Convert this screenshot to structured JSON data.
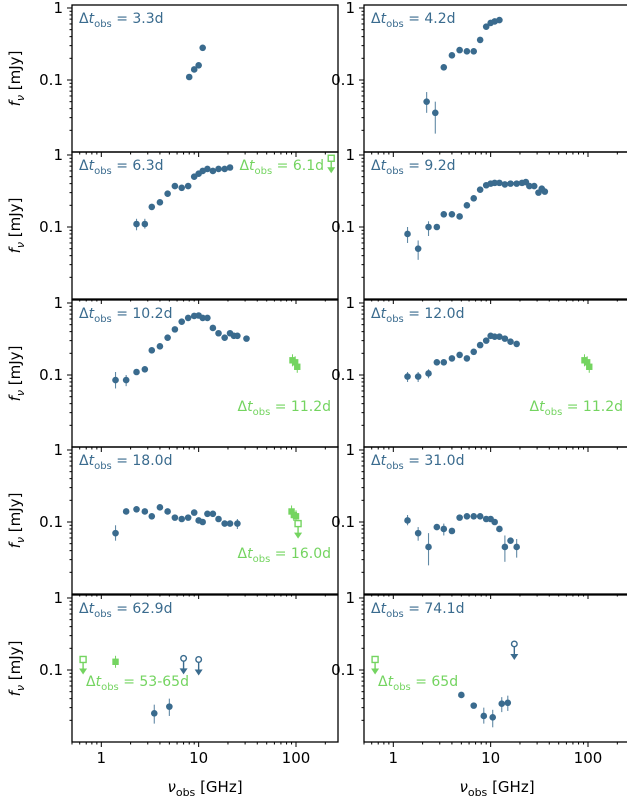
{
  "chart_data": {
    "type": "scatter",
    "grid": false,
    "x_scale": "log",
    "y_scale": "log",
    "xlim": [
      0.5,
      270
    ],
    "ylim": [
      0.01,
      1.1
    ],
    "x_ticks": [
      "1",
      "10",
      "100"
    ],
    "y_ticks": [
      "0.1",
      "1"
    ],
    "xlabel": "ν_obs [GHz]",
    "ylabel": "f_ν [mJy]",
    "colors": {
      "main": "#3a6b8e",
      "secondary": "#74d460"
    },
    "panels": [
      {
        "label": "Δt_obs = 3.3d",
        "points": [
          [
            8.0,
            0.11
          ],
          [
            9.0,
            0.14
          ],
          [
            10.0,
            0.16
          ],
          [
            11.0,
            0.28
          ]
        ],
        "errors": [],
        "secondary_label": "",
        "secondary_points": []
      },
      {
        "label": "Δt_obs = 4.2d",
        "points": [
          [
            2.2,
            0.05
          ],
          [
            2.7,
            0.035
          ],
          [
            3.3,
            0.15
          ],
          [
            4.0,
            0.22
          ],
          [
            4.8,
            0.26
          ],
          [
            5.7,
            0.25
          ],
          [
            6.7,
            0.25
          ],
          [
            7.8,
            0.36
          ],
          [
            9.0,
            0.55
          ],
          [
            10.0,
            0.62
          ],
          [
            11.0,
            0.65
          ],
          [
            12.3,
            0.68
          ]
        ],
        "errors": [
          [
            2.2,
            0.035,
            0.068
          ],
          [
            2.7,
            0.018,
            0.05
          ]
        ],
        "secondary_label": "",
        "secondary_points": []
      },
      {
        "label": "Δt_obs = 6.3d",
        "points": [
          [
            2.3,
            0.11
          ],
          [
            2.8,
            0.11
          ],
          [
            3.3,
            0.19
          ],
          [
            4.0,
            0.22
          ],
          [
            4.8,
            0.29
          ],
          [
            5.7,
            0.37
          ],
          [
            6.7,
            0.35
          ],
          [
            7.8,
            0.37
          ],
          [
            9.0,
            0.5
          ],
          [
            10.0,
            0.55
          ],
          [
            11.0,
            0.6
          ],
          [
            12.3,
            0.64
          ],
          [
            14.0,
            0.6
          ],
          [
            16.0,
            0.64
          ],
          [
            18.5,
            0.64
          ],
          [
            21.0,
            0.67
          ]
        ],
        "errors": [
          [
            2.3,
            0.09,
            0.13
          ],
          [
            2.8,
            0.095,
            0.13
          ]
        ],
        "secondary_label": "Δt_obs = 6.1d",
        "secondary_points": [
          [
            230,
            0.9,
            "upper"
          ]
        ]
      },
      {
        "label": "Δt_obs = 9.2d",
        "points": [
          [
            1.4,
            0.08
          ],
          [
            1.8,
            0.05
          ],
          [
            2.3,
            0.1
          ],
          [
            2.8,
            0.1
          ],
          [
            3.3,
            0.15
          ],
          [
            4.0,
            0.15
          ],
          [
            4.8,
            0.14
          ],
          [
            5.7,
            0.2
          ],
          [
            6.7,
            0.25
          ],
          [
            7.8,
            0.33
          ],
          [
            9.0,
            0.38
          ],
          [
            10.0,
            0.4
          ],
          [
            11.0,
            0.41
          ],
          [
            12.3,
            0.41
          ],
          [
            14.0,
            0.39
          ],
          [
            16.0,
            0.4
          ],
          [
            18.5,
            0.4
          ],
          [
            21.0,
            0.41
          ],
          [
            23.0,
            0.42
          ],
          [
            25.0,
            0.37
          ],
          [
            28.0,
            0.37
          ],
          [
            31.0,
            0.3
          ],
          [
            33.5,
            0.34
          ],
          [
            36.0,
            0.31
          ]
        ],
        "errors": [
          [
            1.4,
            0.06,
            0.1
          ],
          [
            1.8,
            0.035,
            0.065
          ],
          [
            2.3,
            0.075,
            0.12
          ]
        ],
        "secondary_label": "",
        "secondary_points": []
      },
      {
        "label": "Δt_obs = 10.2d",
        "points": [
          [
            1.4,
            0.085
          ],
          [
            1.8,
            0.085
          ],
          [
            2.3,
            0.11
          ],
          [
            2.8,
            0.12
          ],
          [
            3.3,
            0.22
          ],
          [
            4.0,
            0.25
          ],
          [
            4.8,
            0.33
          ],
          [
            5.7,
            0.43
          ],
          [
            6.7,
            0.55
          ],
          [
            7.8,
            0.62
          ],
          [
            9.0,
            0.66
          ],
          [
            10.0,
            0.67
          ],
          [
            11.0,
            0.62
          ],
          [
            12.3,
            0.62
          ],
          [
            14.0,
            0.45
          ],
          [
            16.0,
            0.38
          ],
          [
            18.5,
            0.33
          ],
          [
            21.0,
            0.38
          ],
          [
            23.0,
            0.35
          ],
          [
            25.0,
            0.35
          ],
          [
            31.0,
            0.32
          ]
        ],
        "errors": [
          [
            1.4,
            0.065,
            0.11
          ],
          [
            1.8,
            0.07,
            0.1
          ]
        ],
        "secondary_label": "Δt_obs = 11.2d",
        "secondary_points": [
          [
            92,
            0.16,
            "detection"
          ],
          [
            98,
            0.15,
            "detection"
          ],
          [
            103,
            0.13,
            "detection"
          ]
        ]
      },
      {
        "label": "Δt_obs = 12.0d",
        "points": [
          [
            1.4,
            0.095
          ],
          [
            1.8,
            0.095
          ],
          [
            2.3,
            0.105
          ],
          [
            2.8,
            0.15
          ],
          [
            3.3,
            0.15
          ],
          [
            4.0,
            0.17
          ],
          [
            4.8,
            0.19
          ],
          [
            5.7,
            0.17
          ],
          [
            6.7,
            0.21
          ],
          [
            7.8,
            0.26
          ],
          [
            9.0,
            0.3
          ],
          [
            10.0,
            0.35
          ],
          [
            11.0,
            0.34
          ],
          [
            12.3,
            0.34
          ],
          [
            14.0,
            0.32
          ],
          [
            16.0,
            0.29
          ],
          [
            18.5,
            0.27
          ]
        ],
        "errors": [
          [
            1.4,
            0.08,
            0.11
          ],
          [
            1.8,
            0.08,
            0.11
          ],
          [
            2.3,
            0.09,
            0.12
          ]
        ],
        "secondary_label": "Δt_obs = 11.2d",
        "secondary_points": [
          [
            92,
            0.16,
            "detection"
          ],
          [
            98,
            0.15,
            "detection"
          ],
          [
            103,
            0.13,
            "detection"
          ]
        ]
      },
      {
        "label": "Δt_obs = 18.0d",
        "points": [
          [
            1.4,
            0.07
          ],
          [
            1.8,
            0.14
          ],
          [
            2.3,
            0.15
          ],
          [
            2.8,
            0.14
          ],
          [
            3.3,
            0.12
          ],
          [
            4.0,
            0.16
          ],
          [
            4.8,
            0.14
          ],
          [
            5.7,
            0.115
          ],
          [
            6.7,
            0.11
          ],
          [
            7.8,
            0.115
          ],
          [
            9.0,
            0.135
          ],
          [
            10.0,
            0.105
          ],
          [
            11.0,
            0.1
          ],
          [
            12.3,
            0.13
          ],
          [
            14.0,
            0.13
          ],
          [
            16.0,
            0.11
          ],
          [
            18.5,
            0.095
          ],
          [
            21.0,
            0.095
          ],
          [
            25.0,
            0.095
          ]
        ],
        "errors": [
          [
            1.4,
            0.055,
            0.09
          ],
          [
            25.0,
            0.08,
            0.11
          ]
        ],
        "secondary_label": "Δt_obs = 16.0d",
        "secondary_points": [
          [
            90,
            0.14,
            "detection"
          ],
          [
            95,
            0.125,
            "detection"
          ],
          [
            100,
            0.12,
            "detection"
          ],
          [
            105,
            0.095,
            "upper"
          ]
        ]
      },
      {
        "label": "Δt_obs = 31.0d",
        "points": [
          [
            1.4,
            0.105
          ],
          [
            1.8,
            0.07
          ],
          [
            2.3,
            0.045
          ],
          [
            2.8,
            0.085
          ],
          [
            3.3,
            0.08
          ],
          [
            4.0,
            0.075
          ],
          [
            4.8,
            0.115
          ],
          [
            5.7,
            0.12
          ],
          [
            6.7,
            0.12
          ],
          [
            7.8,
            0.12
          ],
          [
            9.0,
            0.11
          ],
          [
            10.0,
            0.11
          ],
          [
            11.0,
            0.1
          ],
          [
            12.3,
            0.08
          ],
          [
            14.0,
            0.045
          ],
          [
            16.0,
            0.055
          ],
          [
            18.5,
            0.045
          ]
        ],
        "errors": [
          [
            1.4,
            0.09,
            0.125
          ],
          [
            1.8,
            0.055,
            0.085
          ],
          [
            2.3,
            0.025,
            0.07
          ],
          [
            3.3,
            0.065,
            0.095
          ],
          [
            14.0,
            0.028,
            0.065
          ],
          [
            18.5,
            0.032,
            0.058
          ]
        ],
        "secondary_label": "",
        "secondary_points": []
      },
      {
        "label": "Δt_obs = 62.9d",
        "points": [
          [
            3.5,
            0.025
          ],
          [
            5.0,
            0.031
          ]
        ],
        "errors": [
          [
            3.5,
            0.018,
            0.033
          ],
          [
            5.0,
            0.023,
            0.04
          ]
        ],
        "secondary_label": "Δt_obs = 53-65d",
        "secondary_points": [
          [
            0.65,
            0.14,
            "upper_hollow"
          ],
          [
            1.4,
            0.13,
            "detection"
          ]
        ],
        "extra_upper_limits": [
          [
            7.0,
            0.145
          ],
          [
            10.0,
            0.14
          ]
        ]
      },
      {
        "label": "Δt_obs = 74.1d",
        "points": [
          [
            5.0,
            0.045
          ],
          [
            6.7,
            0.032
          ],
          [
            8.5,
            0.023
          ],
          [
            10.5,
            0.022
          ],
          [
            13.0,
            0.034
          ],
          [
            15.0,
            0.035
          ]
        ],
        "errors": [
          [
            8.5,
            0.018,
            0.03
          ],
          [
            10.5,
            0.016,
            0.028
          ],
          [
            13.0,
            0.026,
            0.042
          ],
          [
            15.0,
            0.027,
            0.044
          ]
        ],
        "secondary_label": "Δt_obs = 65d",
        "secondary_points": [
          [
            0.65,
            0.14,
            "upper_hollow"
          ]
        ],
        "extra_upper_limits": [
          [
            17.5,
            0.23
          ]
        ]
      }
    ]
  }
}
